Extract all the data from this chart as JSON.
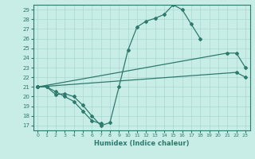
{
  "xlabel": "Humidex (Indice chaleur)",
  "xlim": [
    -0.5,
    23.5
  ],
  "ylim": [
    16.5,
    29.5
  ],
  "xticks": [
    0,
    1,
    2,
    3,
    4,
    5,
    6,
    7,
    8,
    9,
    10,
    11,
    12,
    13,
    14,
    15,
    16,
    17,
    18,
    19,
    20,
    21,
    22,
    23
  ],
  "yticks": [
    17,
    18,
    19,
    20,
    21,
    22,
    23,
    24,
    25,
    26,
    27,
    28,
    29
  ],
  "bg_color": "#c8ece6",
  "grid_color": "#a8d8d0",
  "line_color": "#2e7b6e",
  "line1_x": [
    0,
    1,
    2,
    3,
    4,
    5,
    6,
    7,
    8,
    9,
    10,
    11,
    12,
    13,
    14,
    15,
    16,
    17,
    18
  ],
  "line1_y": [
    21,
    21,
    20.2,
    20.3,
    20.0,
    19.1,
    18.0,
    17.0,
    17.3,
    21.0,
    24.8,
    27.2,
    27.8,
    28.1,
    28.5,
    29.5,
    29.0,
    27.5,
    26.0
  ],
  "line2_x": [
    0,
    1,
    2,
    3,
    4,
    5,
    6,
    7
  ],
  "line2_y": [
    21,
    21,
    20.5,
    20.0,
    19.5,
    18.5,
    17.5,
    17.2
  ],
  "line3_x": [
    0,
    21,
    22,
    23
  ],
  "line3_y": [
    21,
    24.5,
    24.5,
    23.0
  ],
  "line4_x": [
    0,
    22,
    23
  ],
  "line4_y": [
    21,
    22.5,
    22.0
  ]
}
